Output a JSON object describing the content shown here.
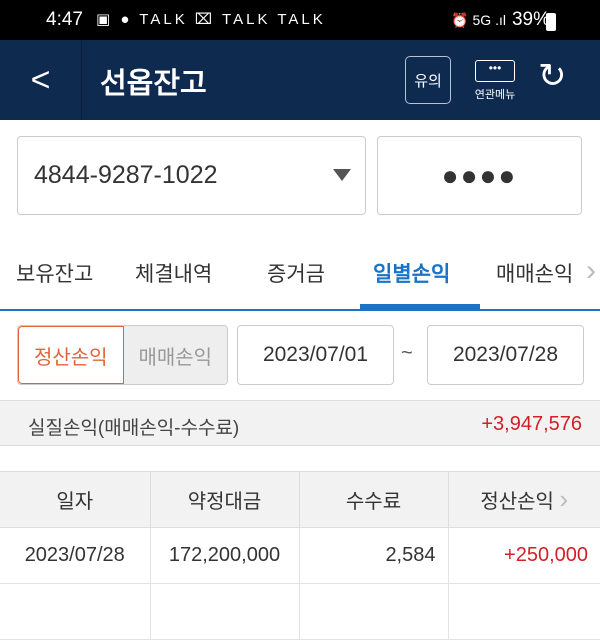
{
  "status": {
    "time": "4:47",
    "notif_icons": "▣ ● TALK ⌧ TALK TALK",
    "battery": "39%",
    "signal": "⏰ 5G .ıl"
  },
  "header": {
    "back_icon": "chevron-left",
    "title": "선옵잔고",
    "notice_label": "유의",
    "menu_label": "연관메뉴",
    "menu_dots": "•••",
    "refresh_icon": "↻"
  },
  "account": {
    "number": "4844-9287-1022",
    "password_mask": "●●●●"
  },
  "tabs": [
    {
      "label": "보유잔고"
    },
    {
      "label": "체결내역"
    },
    {
      "label": "증거금"
    },
    {
      "label": "일별손익",
      "active": true
    },
    {
      "label": "매매손익"
    }
  ],
  "filter": {
    "mode_on": "정산손익",
    "mode_off": "매매손익",
    "date_from": "2023/07/01",
    "separator": "~",
    "date_to": "2023/07/28"
  },
  "summary": {
    "label": "실질손익(매매손익-수수료)",
    "value": "+3,947,576"
  },
  "table": {
    "headers": [
      "일자",
      "약정대금",
      "수수료",
      "정산손익"
    ],
    "rows": [
      [
        "2023/07/28",
        "172,200,000",
        "2,584",
        "+250,000"
      ]
    ]
  },
  "colors": {
    "header_bg": "#0f2a4f",
    "accent": "#1a73c8",
    "profit": "#d21f26",
    "toggle_active": "#e0643a"
  }
}
